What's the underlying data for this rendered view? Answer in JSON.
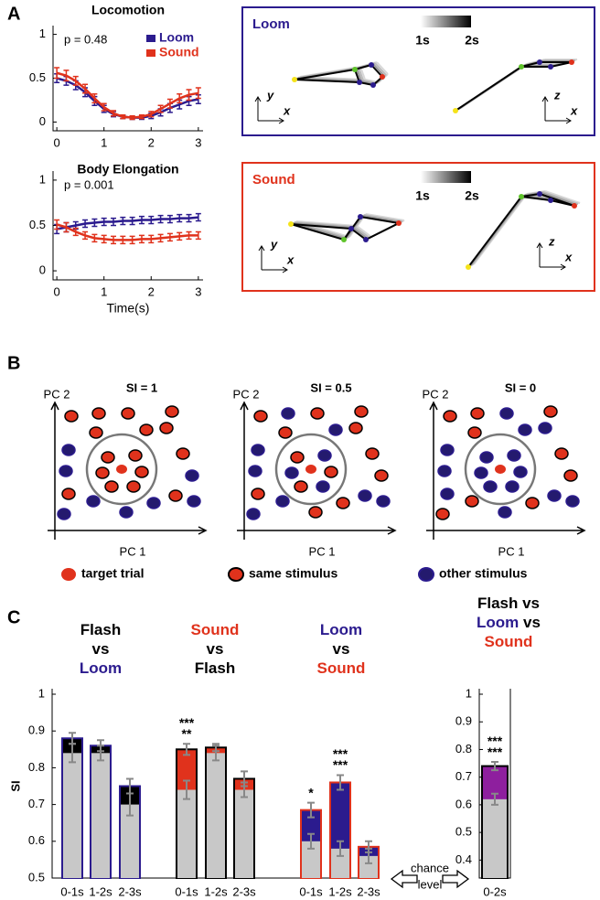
{
  "panel_labels": [
    "A",
    "B",
    "C"
  ],
  "chart_data": [
    {
      "type": "line",
      "title": "Locomotion",
      "annotation": "p = 0.48",
      "legend": "upper right",
      "x": [
        0,
        0.2,
        0.4,
        0.6,
        0.8,
        1.0,
        1.2,
        1.4,
        1.6,
        1.8,
        2.0,
        2.2,
        2.4,
        2.6,
        2.8,
        3.0
      ],
      "series": [
        {
          "name": "Loom",
          "color": "#2b1b8e",
          "values": [
            0.5,
            0.47,
            0.42,
            0.34,
            0.24,
            0.15,
            0.09,
            0.06,
            0.05,
            0.05,
            0.07,
            0.11,
            0.16,
            0.2,
            0.24,
            0.26
          ],
          "errors": [
            0.05,
            0.05,
            0.05,
            0.05,
            0.05,
            0.04,
            0.03,
            0.02,
            0.02,
            0.02,
            0.03,
            0.04,
            0.05,
            0.05,
            0.05,
            0.05
          ]
        },
        {
          "name": "Sound",
          "color": "#e0321c",
          "values": [
            0.56,
            0.53,
            0.47,
            0.38,
            0.27,
            0.17,
            0.1,
            0.06,
            0.05,
            0.06,
            0.09,
            0.15,
            0.21,
            0.27,
            0.31,
            0.33
          ],
          "errors": [
            0.06,
            0.06,
            0.05,
            0.05,
            0.05,
            0.04,
            0.03,
            0.02,
            0.02,
            0.02,
            0.03,
            0.04,
            0.05,
            0.05,
            0.06,
            0.06
          ]
        }
      ],
      "xlim": [
        -0.08,
        3.1
      ],
      "ylim": [
        -0.1,
        1.1
      ],
      "xticks": [
        0,
        1,
        2,
        3
      ],
      "yticks": [
        0,
        0.5,
        1
      ]
    },
    {
      "type": "line",
      "title": "Body Elongation",
      "annotation": "p = 0.001",
      "x_label": "Time(s)",
      "x": [
        0,
        0.2,
        0.4,
        0.6,
        0.8,
        1.0,
        1.2,
        1.4,
        1.6,
        1.8,
        2.0,
        2.2,
        2.4,
        2.6,
        2.8,
        3.0
      ],
      "series": [
        {
          "color": "#2b1b8e",
          "values": [
            0.46,
            0.48,
            0.5,
            0.52,
            0.53,
            0.54,
            0.54,
            0.55,
            0.55,
            0.56,
            0.56,
            0.57,
            0.57,
            0.58,
            0.58,
            0.59
          ],
          "errors": [
            0.05,
            0.05,
            0.04,
            0.04,
            0.04,
            0.04,
            0.04,
            0.04,
            0.04,
            0.04,
            0.04,
            0.04,
            0.04,
            0.04,
            0.04,
            0.04
          ]
        },
        {
          "color": "#e0321c",
          "values": [
            0.51,
            0.48,
            0.43,
            0.39,
            0.36,
            0.35,
            0.34,
            0.34,
            0.34,
            0.35,
            0.35,
            0.36,
            0.37,
            0.38,
            0.39,
            0.39
          ],
          "errors": [
            0.05,
            0.05,
            0.04,
            0.04,
            0.04,
            0.04,
            0.04,
            0.04,
            0.04,
            0.04,
            0.04,
            0.04,
            0.04,
            0.04,
            0.04,
            0.04
          ]
        }
      ],
      "xlim": [
        -0.08,
        3.1
      ],
      "ylim": [
        -0.1,
        1.1
      ],
      "xticks": [
        0,
        1,
        2,
        3
      ],
      "yticks": [
        0,
        0.5,
        1
      ]
    },
    {
      "type": "bar",
      "y_label": "SI",
      "ylim": [
        0.5,
        1.0
      ],
      "yticks": [
        0.5,
        0.6,
        0.7,
        0.8,
        0.9,
        1
      ],
      "chance_color": "#c8c8c8",
      "groups": [
        {
          "title_lines": [
            [
              {
                "text": "Flash",
                "color": "#000000"
              }
            ],
            [
              {
                "text": "vs",
                "color": "#000000"
              }
            ],
            [
              {
                "text": "Loom",
                "color": "#2b1b8e"
              }
            ]
          ],
          "fill": "#000000",
          "edge": "#2b1b8e",
          "categories": [
            "0-1s",
            "1-2s",
            "2-3s"
          ],
          "values": [
            0.88,
            0.86,
            0.75
          ],
          "errors": [
            0.015,
            0.015,
            0.02
          ],
          "chance": [
            0.84,
            0.84,
            0.7
          ],
          "chance_errors": [
            0.025,
            0.02,
            0.03
          ],
          "stars": [
            null,
            null,
            null
          ]
        },
        {
          "title_lines": [
            [
              {
                "text": "Sound",
                "color": "#e0321c"
              }
            ],
            [
              {
                "text": "vs",
                "color": "#000000"
              }
            ],
            [
              {
                "text": "Flash",
                "color": "#000000"
              }
            ]
          ],
          "fill": "#e0321c",
          "edge": "#000000",
          "categories": [
            "0-1s",
            "1-2s",
            "2-3s"
          ],
          "values": [
            0.85,
            0.855,
            0.77
          ],
          "errors": [
            0.015,
            0.01,
            0.02
          ],
          "chance": [
            0.74,
            0.84,
            0.74
          ],
          "chance_errors": [
            0.025,
            0.02,
            0.02
          ],
          "stars": [
            [
              "***",
              "**"
            ],
            null,
            null
          ]
        },
        {
          "title_lines": [
            [
              {
                "text": "Loom",
                "color": "#2b1b8e"
              }
            ],
            [
              {
                "text": "vs",
                "color": "#000000"
              }
            ],
            [
              {
                "text": "Sound",
                "color": "#e0321c"
              }
            ]
          ],
          "fill": "#2b1b8e",
          "edge": "#e0321c",
          "categories": [
            "0-1s",
            "1-2s",
            "2-3s"
          ],
          "values": [
            0.685,
            0.76,
            0.585
          ],
          "errors": [
            0.02,
            0.02,
            0.015
          ],
          "chance": [
            0.6,
            0.58,
            0.56
          ],
          "chance_errors": [
            0.02,
            0.02,
            0.02
          ],
          "stars": [
            [
              "*"
            ],
            [
              "***",
              "***"
            ],
            null
          ]
        }
      ]
    },
    {
      "type": "bar",
      "ylim": [
        0.335,
        1.0
      ],
      "yticks": [
        0.4,
        0.5,
        0.6,
        0.7,
        0.8,
        0.9,
        1
      ],
      "chance_color": "#c8c8c8",
      "groups": [
        {
          "title_lines": [
            [
              {
                "text": "Flash vs",
                "color": "#000000"
              }
            ],
            [
              {
                "text": "Loom",
                "color": "#2b1b8e"
              },
              {
                "text": " vs",
                "color": "#000000"
              }
            ],
            [
              {
                "text": "Sound",
                "color": "#e0321c"
              }
            ]
          ],
          "fill": "#8e1f9e",
          "edge": "#000000",
          "categories": [
            "0-2s"
          ],
          "values": [
            0.74
          ],
          "errors": [
            0.015
          ],
          "chance": [
            0.62
          ],
          "chance_errors": [
            0.02
          ],
          "stars": [
            [
              "***",
              "***"
            ]
          ]
        }
      ]
    }
  ],
  "skeletons": [
    {
      "title": "Loom",
      "color": "#2b1b8e"
    },
    {
      "title": "Sound",
      "color": "#e0321c"
    }
  ],
  "time_scale": {
    "start": "1s",
    "end": "2s"
  },
  "views": [
    {
      "vertical": "y",
      "horizontal": "x"
    },
    {
      "vertical": "z",
      "horizontal": "x"
    }
  ],
  "pca": {
    "titles": [
      "SI = 1",
      "SI = 0.5",
      "SI = 0"
    ],
    "x_label": "PC 1",
    "y_label": "PC 2",
    "legend": [
      "target trial",
      "same stimulus",
      "other stimulus"
    ]
  },
  "chance_note": [
    "chance",
    "level"
  ]
}
